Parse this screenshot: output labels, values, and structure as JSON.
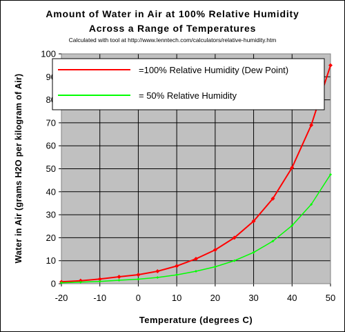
{
  "chart_data": {
    "type": "line",
    "title": "Amount of Water in Air at 100% Relative Humidity",
    "title_line2": "Across a Range of Temperatures",
    "subtitle": "Calculated with tool at http://www.lenntech.com/calculators/relative-humidity.htm",
    "xlabel": "Temperature (degrees C)",
    "ylabel": "Water in Air (grams H2O per kilogram of Air)",
    "xlim": [
      -20,
      50
    ],
    "ylim": [
      0,
      100
    ],
    "xticks": [
      -20,
      -10,
      0,
      10,
      20,
      30,
      40,
      50
    ],
    "yticks": [
      0,
      10,
      20,
      30,
      40,
      50,
      60,
      70,
      80,
      90,
      100
    ],
    "grid": true,
    "plot_background": "#C0C0C0",
    "legend_position": "top-left inside",
    "x": [
      -20,
      -15,
      -10,
      -5,
      0,
      5,
      10,
      15,
      20,
      25,
      30,
      35,
      40,
      45,
      50
    ],
    "series": [
      {
        "name": "=100% Relative Humidity (Dew Point)",
        "color": "#FF0000",
        "values": [
          0.8,
          1.3,
          2.0,
          3.0,
          3.9,
          5.4,
          7.7,
          10.8,
          14.7,
          20.0,
          27.2,
          37.0,
          50.5,
          69.0,
          95.0
        ]
      },
      {
        "name": "=   50% Relative Humidity",
        "color": "#00FF00",
        "values": [
          0.4,
          0.65,
          1.0,
          1.5,
          1.95,
          2.7,
          3.85,
          5.4,
          7.35,
          10.0,
          13.6,
          18.5,
          25.3,
          34.5,
          47.5
        ]
      }
    ]
  }
}
